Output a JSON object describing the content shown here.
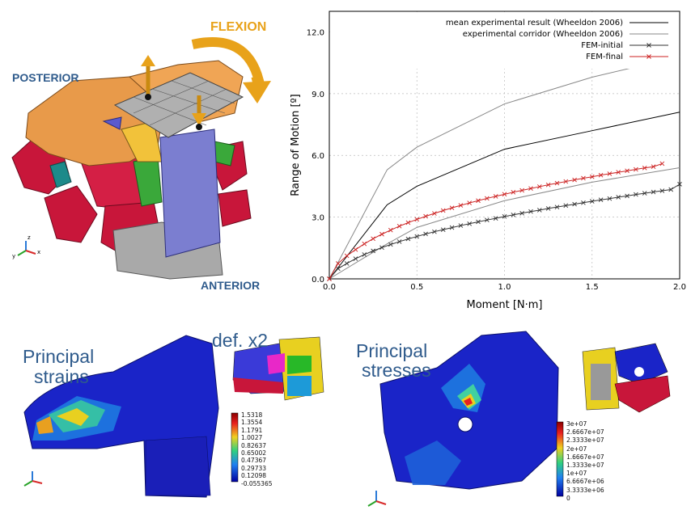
{
  "top_left": {
    "flexion_label": "FLEXION",
    "posterior_label": "POSTERIOR",
    "anterior_label": "ANTERIOR"
  },
  "bottom_left": {
    "title_line1": "Principal",
    "title_line2": "strains",
    "deformation_label": "def. x2",
    "colorbar_ticks": [
      "1.5318",
      "1.3554",
      "1.1791",
      "1.0027",
      "0.82637",
      "0.65002",
      "0.47367",
      "0.29733",
      "0.12098",
      "-0.055365"
    ]
  },
  "bottom_right": {
    "title_line1": "Principal",
    "title_line2": "stresses",
    "colorbar_ticks": [
      "3e+07",
      "2.6667e+07",
      "2.3333e+07",
      "2e+07",
      "1.6667e+07",
      "1.3333e+07",
      "1e+07",
      "6.6667e+06",
      "3.3333e+06",
      "0"
    ]
  },
  "axes_labels": {
    "x": "x",
    "y": "y",
    "z": "z"
  },
  "chart_data": {
    "type": "line",
    "xlabel": "Moment [N·m]",
    "ylabel": "Range of Motion [º]",
    "xlim": [
      0,
      2.0
    ],
    "ylim": [
      0,
      13.0
    ],
    "x_ticks": [
      "0.0",
      "0.5",
      "1.0",
      "1.5",
      "2.0"
    ],
    "y_ticks": [
      "0.0",
      "3.0",
      "6.0",
      "9.0",
      "12.0"
    ],
    "grid": true,
    "legend_position": "top-right",
    "series": [
      {
        "name": "mean experimental result (Wheeldon 2006)",
        "color": "#000000",
        "marker": "none",
        "x": [
          0,
          0.33,
          0.5,
          1.0,
          1.5,
          2.0
        ],
        "y": [
          0,
          3.6,
          4.5,
          6.3,
          7.2,
          8.1
        ]
      },
      {
        "name": "experimental corridor (Wheeldon 2006)",
        "color": "#888888",
        "marker": "none",
        "x": [
          0,
          0.33,
          0.5,
          1.0,
          1.5,
          2.0
        ],
        "y": [
          0,
          5.3,
          6.4,
          8.5,
          9.8,
          10.8
        ]
      },
      {
        "name": "",
        "color": "#888888",
        "marker": "none",
        "x": [
          0,
          0.33,
          0.5,
          1.0,
          1.5,
          2.0
        ],
        "y": [
          0,
          1.7,
          2.5,
          3.8,
          4.7,
          5.4
        ]
      },
      {
        "name": "FEM-initial",
        "color": "#333333",
        "marker": "x",
        "x": [
          0,
          0.05,
          0.1,
          0.15,
          0.2,
          0.25,
          0.3,
          0.35,
          0.4,
          0.45,
          0.5,
          0.55,
          0.6,
          0.65,
          0.7,
          0.75,
          0.8,
          0.85,
          0.9,
          0.95,
          1.0,
          1.05,
          1.1,
          1.15,
          1.2,
          1.25,
          1.3,
          1.35,
          1.4,
          1.45,
          1.5,
          1.55,
          1.6,
          1.65,
          1.7,
          1.75,
          1.8,
          1.85,
          1.9,
          1.95,
          2.0
        ],
        "y": [
          0,
          0.5,
          0.75,
          0.98,
          1.18,
          1.36,
          1.52,
          1.67,
          1.81,
          1.94,
          2.06,
          2.18,
          2.29,
          2.39,
          2.49,
          2.59,
          2.68,
          2.77,
          2.86,
          2.94,
          3.03,
          3.11,
          3.19,
          3.27,
          3.34,
          3.42,
          3.49,
          3.56,
          3.63,
          3.7,
          3.77,
          3.84,
          3.9,
          3.97,
          4.03,
          4.1,
          4.16,
          4.22,
          4.28,
          4.34,
          4.6
        ]
      },
      {
        "name": "FEM-final",
        "color": "#cc2222",
        "marker": "x",
        "x": [
          0,
          0.05,
          0.1,
          0.15,
          0.2,
          0.25,
          0.3,
          0.35,
          0.4,
          0.45,
          0.5,
          0.55,
          0.6,
          0.65,
          0.7,
          0.75,
          0.8,
          0.85,
          0.9,
          0.95,
          1.0,
          1.05,
          1.1,
          1.15,
          1.2,
          1.25,
          1.3,
          1.35,
          1.4,
          1.45,
          1.5,
          1.55,
          1.6,
          1.65,
          1.7,
          1.75,
          1.8,
          1.85,
          1.9
        ],
        "y": [
          0,
          0.75,
          1.12,
          1.42,
          1.7,
          1.95,
          2.17,
          2.37,
          2.56,
          2.73,
          2.89,
          3.04,
          3.18,
          3.32,
          3.45,
          3.57,
          3.69,
          3.8,
          3.91,
          4.01,
          4.11,
          4.21,
          4.3,
          4.39,
          4.48,
          4.57,
          4.65,
          4.73,
          4.81,
          4.89,
          4.96,
          5.04,
          5.11,
          5.18,
          5.25,
          5.32,
          5.39,
          5.45,
          5.6
        ]
      }
    ]
  },
  "colors": {
    "label_blue": "#2f5b8c",
    "flexion_orange": "#e8a21a"
  }
}
